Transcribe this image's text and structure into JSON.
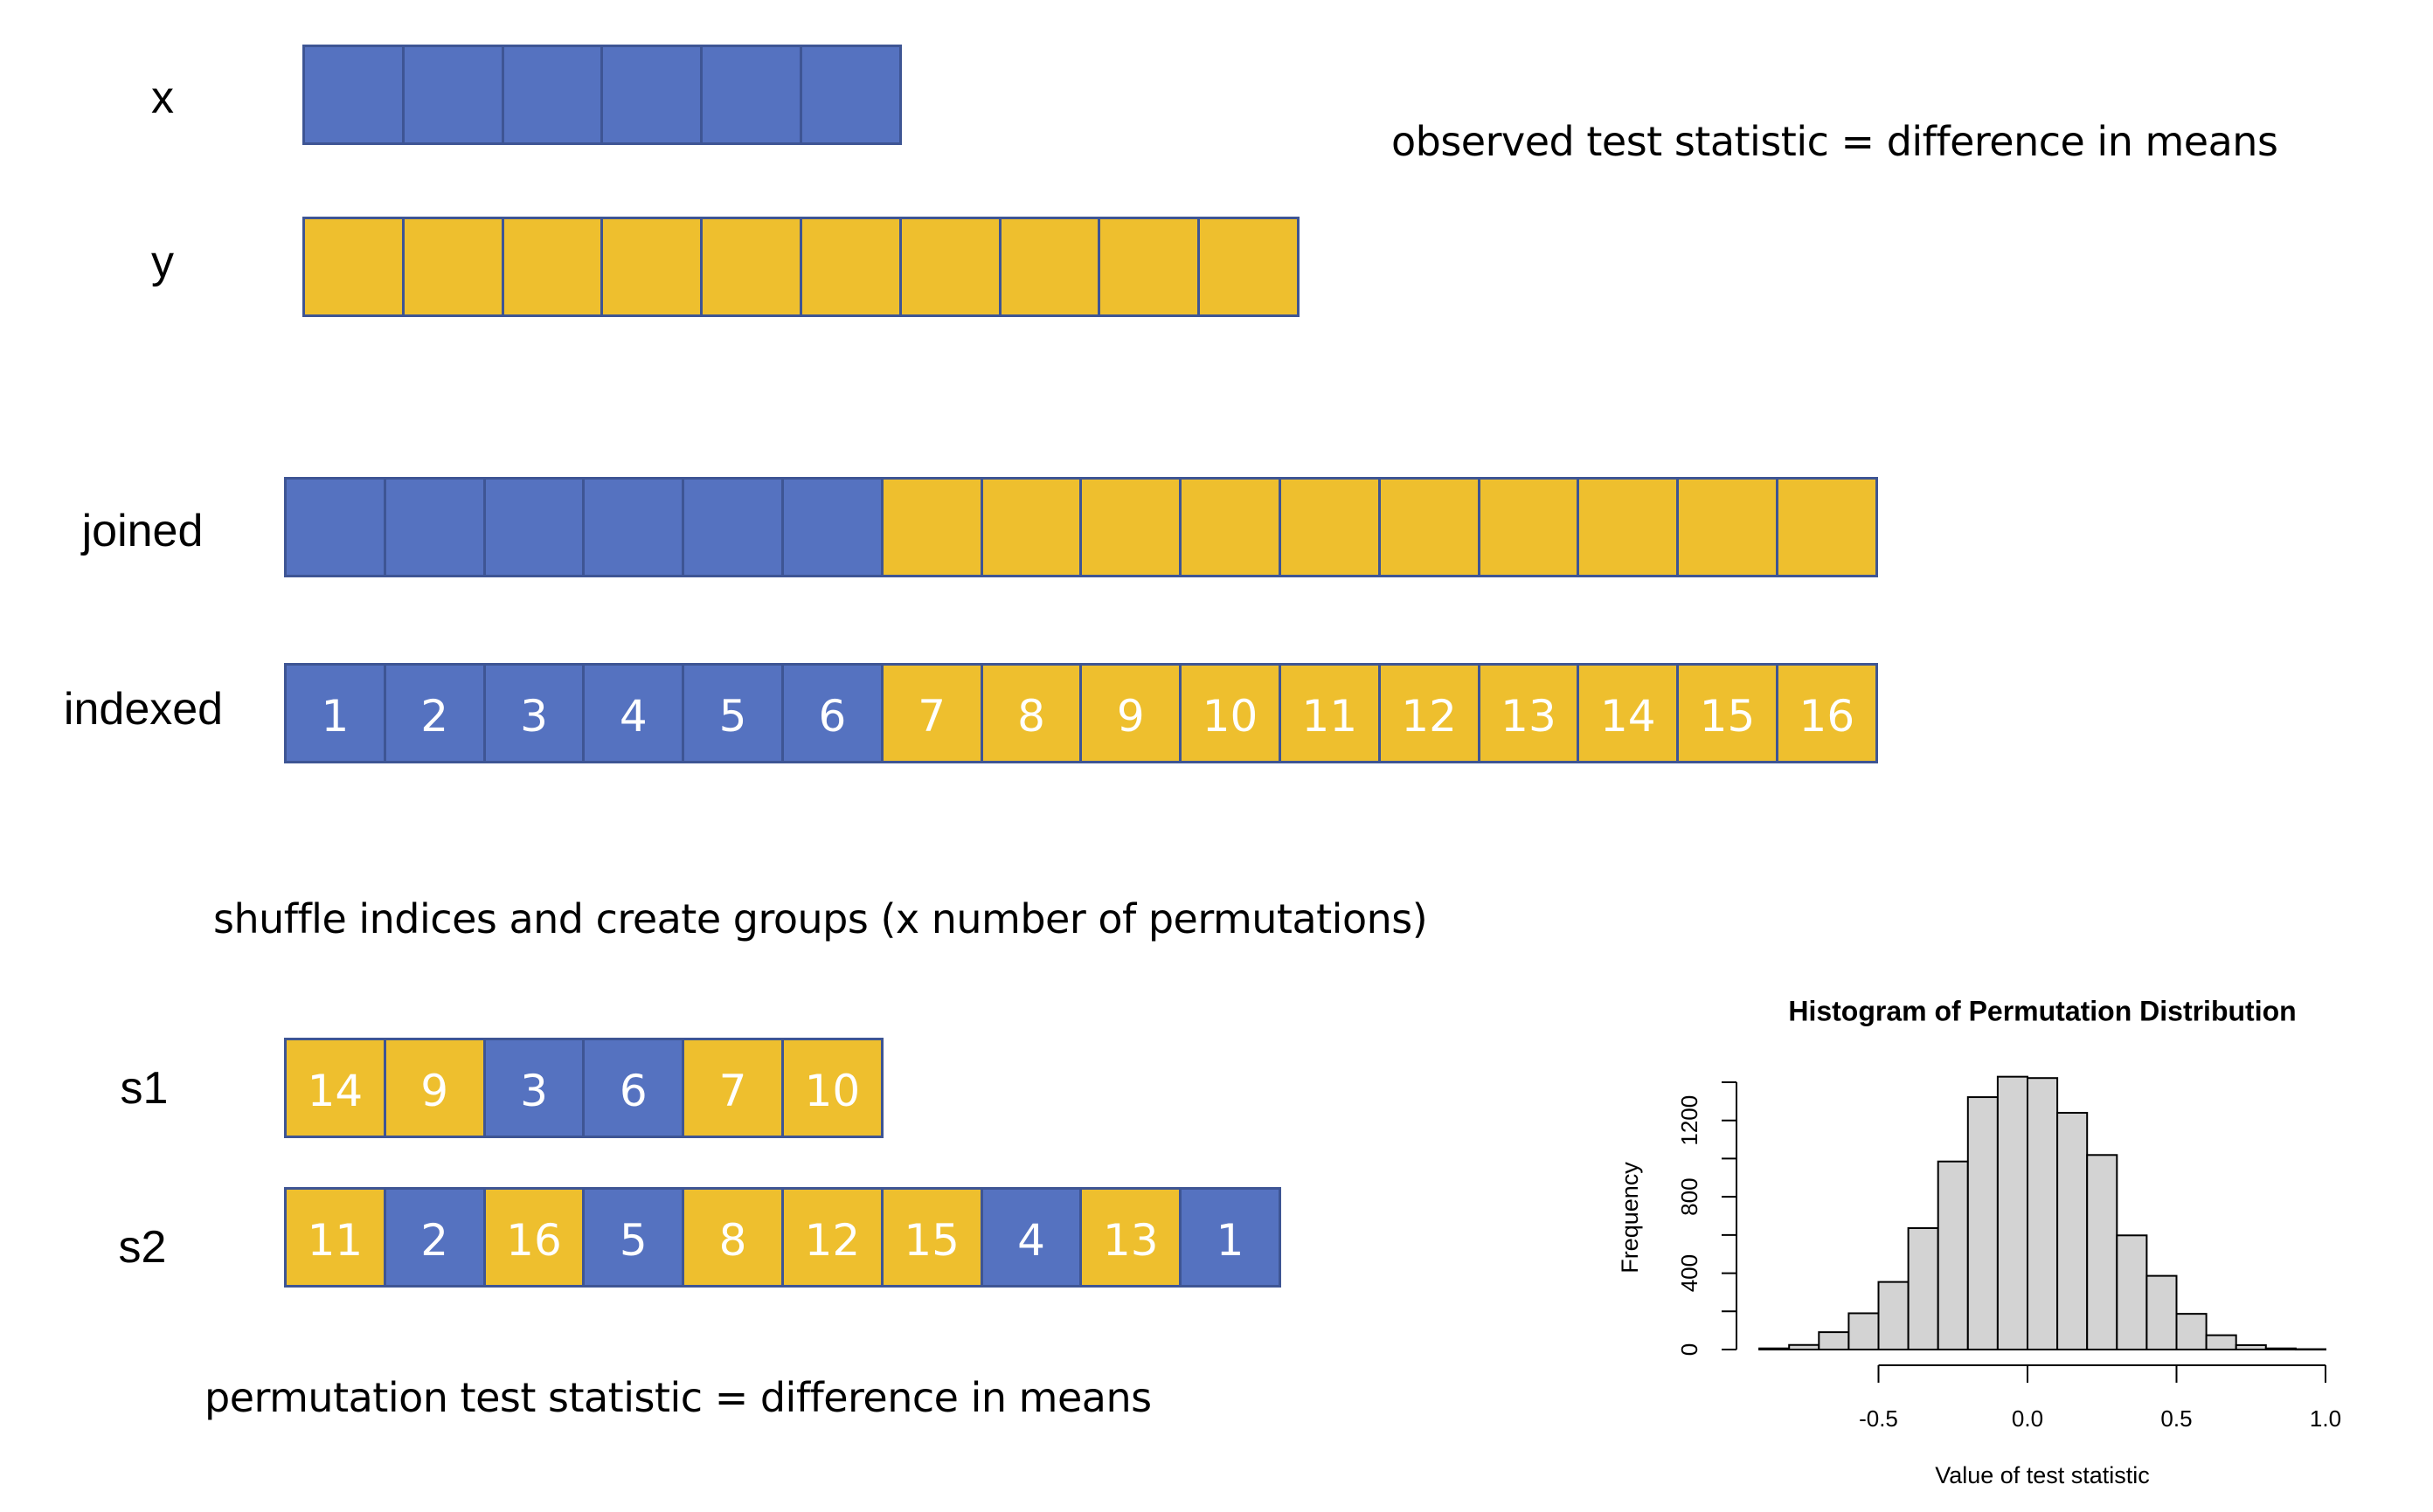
{
  "colors": {
    "x_group": "#5572C0",
    "y_group": "#EEBF2E",
    "cell_border": "#3E5594",
    "bar_fill": "#D3D3D3",
    "bar_stroke": "#000000"
  },
  "rows": {
    "x": {
      "label": "x",
      "cells": [
        {
          "group": "x",
          "text": ""
        },
        {
          "group": "x",
          "text": ""
        },
        {
          "group": "x",
          "text": ""
        },
        {
          "group": "x",
          "text": ""
        },
        {
          "group": "x",
          "text": ""
        },
        {
          "group": "x",
          "text": ""
        }
      ]
    },
    "y": {
      "label": "y",
      "cells": [
        {
          "group": "y",
          "text": ""
        },
        {
          "group": "y",
          "text": ""
        },
        {
          "group": "y",
          "text": ""
        },
        {
          "group": "y",
          "text": ""
        },
        {
          "group": "y",
          "text": ""
        },
        {
          "group": "y",
          "text": ""
        },
        {
          "group": "y",
          "text": ""
        },
        {
          "group": "y",
          "text": ""
        },
        {
          "group": "y",
          "text": ""
        },
        {
          "group": "y",
          "text": ""
        }
      ]
    },
    "joined": {
      "label": "joined",
      "cells": [
        {
          "group": "x",
          "text": ""
        },
        {
          "group": "x",
          "text": ""
        },
        {
          "group": "x",
          "text": ""
        },
        {
          "group": "x",
          "text": ""
        },
        {
          "group": "x",
          "text": ""
        },
        {
          "group": "x",
          "text": ""
        },
        {
          "group": "y",
          "text": ""
        },
        {
          "group": "y",
          "text": ""
        },
        {
          "group": "y",
          "text": ""
        },
        {
          "group": "y",
          "text": ""
        },
        {
          "group": "y",
          "text": ""
        },
        {
          "group": "y",
          "text": ""
        },
        {
          "group": "y",
          "text": ""
        },
        {
          "group": "y",
          "text": ""
        },
        {
          "group": "y",
          "text": ""
        },
        {
          "group": "y",
          "text": ""
        }
      ]
    },
    "indexed": {
      "label": "indexed",
      "cells": [
        {
          "group": "x",
          "text": "1"
        },
        {
          "group": "x",
          "text": "2"
        },
        {
          "group": "x",
          "text": "3"
        },
        {
          "group": "x",
          "text": "4"
        },
        {
          "group": "x",
          "text": "5"
        },
        {
          "group": "x",
          "text": "6"
        },
        {
          "group": "y",
          "text": "7"
        },
        {
          "group": "y",
          "text": "8"
        },
        {
          "group": "y",
          "text": "9"
        },
        {
          "group": "y",
          "text": "10"
        },
        {
          "group": "y",
          "text": "11"
        },
        {
          "group": "y",
          "text": "12"
        },
        {
          "group": "y",
          "text": "13"
        },
        {
          "group": "y",
          "text": "14"
        },
        {
          "group": "y",
          "text": "15"
        },
        {
          "group": "y",
          "text": "16"
        }
      ]
    },
    "s1": {
      "label": "s1",
      "cells": [
        {
          "group": "y",
          "text": "14"
        },
        {
          "group": "y",
          "text": "9"
        },
        {
          "group": "x",
          "text": "3"
        },
        {
          "group": "x",
          "text": "6"
        },
        {
          "group": "y",
          "text": "7"
        },
        {
          "group": "y",
          "text": "10"
        }
      ]
    },
    "s2": {
      "label": "s2",
      "cells": [
        {
          "group": "y",
          "text": "11"
        },
        {
          "group": "x",
          "text": "2"
        },
        {
          "group": "y",
          "text": "16"
        },
        {
          "group": "x",
          "text": "5"
        },
        {
          "group": "y",
          "text": "8"
        },
        {
          "group": "y",
          "text": "12"
        },
        {
          "group": "y",
          "text": "15"
        },
        {
          "group": "x",
          "text": "4"
        },
        {
          "group": "y",
          "text": "13"
        },
        {
          "group": "x",
          "text": "1"
        }
      ]
    }
  },
  "captions": {
    "observed": "observed test statistic = difference in means",
    "shuffle": "shuffle indices and create groups (x number of permutations)",
    "permutation": "permutation test statistic = difference in means"
  },
  "chart_data": {
    "type": "bar",
    "subtype": "histogram",
    "title": "Histogram of Permutation Distribution",
    "xlabel": "Value of test statistic",
    "ylabel": "Frequency",
    "bin_width": 0.1,
    "bin_edges": [
      -0.9,
      -0.8,
      -0.7,
      -0.6,
      -0.5,
      -0.4,
      -0.3,
      -0.2,
      -0.1,
      0.0,
      0.1,
      0.2,
      0.3,
      0.4,
      0.5,
      0.6,
      0.7,
      0.8,
      0.9,
      1.0
    ],
    "values": [
      6,
      24,
      91,
      190,
      354,
      636,
      985,
      1322,
      1429,
      1422,
      1240,
      1019,
      598,
      386,
      187,
      75,
      23,
      6,
      2
    ],
    "xlim": [
      -0.5,
      1.0
    ],
    "ylim": [
      0,
      1400
    ],
    "x_ticks": [
      -0.5,
      0.0,
      0.5,
      1.0
    ],
    "x_tick_labels": [
      "-0.5",
      "0.0",
      "0.5",
      "1.0"
    ],
    "y_ticks": [
      0,
      200,
      400,
      600,
      800,
      1000,
      1200,
      1400
    ],
    "y_tick_labels": [
      "0",
      "400",
      "800",
      "1200"
    ],
    "y_tick_label_values": [
      0,
      400,
      800,
      1200
    ],
    "grid": false,
    "legend": "none"
  }
}
